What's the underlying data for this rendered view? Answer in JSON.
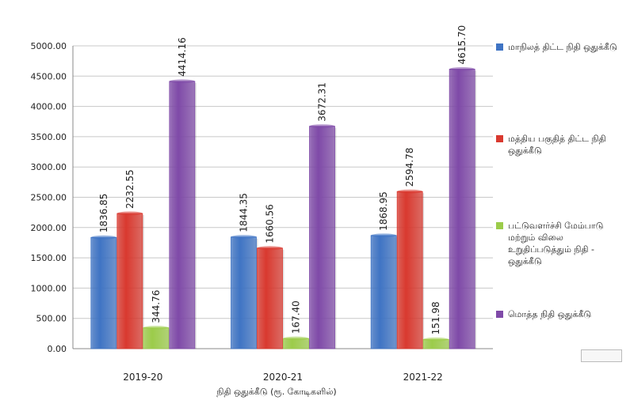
{
  "chart_data": {
    "type": "bar",
    "categories": [
      "2019-20",
      "2020-21",
      "2021-22"
    ],
    "xlabel": "நிதி ஒதுக்கீடு (ரூ. கோடிகளில்)",
    "ylabel": "",
    "ylim": [
      0,
      5000
    ],
    "yticks": [
      "0.00",
      "500.00",
      "1000.00",
      "1500.00",
      "2000.00",
      "2500.00",
      "3000.00",
      "3500.00",
      "4000.00",
      "4500.00",
      "5000.00"
    ],
    "grid": true,
    "legend_position": "right",
    "series": [
      {
        "name": "மாநிலத் திட்ட நிதி ஒதுக்கீடு",
        "color": "#3f74c4",
        "values": [
          1836.85,
          1844.35,
          1868.95
        ],
        "labels": [
          "1836.85",
          "1844.35",
          "1868.95"
        ]
      },
      {
        "name": "மத்திய பகுதித் திட்ட நிதி ஒதுக்கீடு",
        "color": "#d9392f",
        "values": [
          2232.55,
          1660.56,
          2594.78
        ],
        "labels": [
          "2232.55",
          "1660.56",
          "2594.78"
        ]
      },
      {
        "name": "பட்டுவளர்ச்சி மேம்பாடு மற்றும் விலை உறுதிப்படுத்தும் நிதி - ஒதுக்கீடு",
        "color": "#9ccc4a",
        "values": [
          344.76,
          167.4,
          151.98
        ],
        "labels": [
          "344.76",
          "167.40",
          "151.98"
        ]
      },
      {
        "name": "மொத்த நிதி ஒதுக்கீடு",
        "color": "#7f4aa8",
        "values": [
          4414.16,
          3672.31,
          4615.7
        ],
        "labels": [
          "4414.16",
          "3672.31",
          "4615.70"
        ]
      }
    ]
  }
}
